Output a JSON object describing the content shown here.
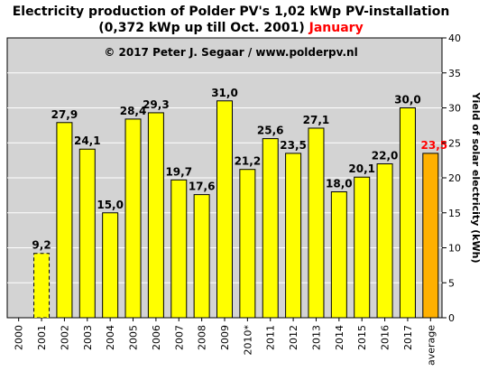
{
  "chart_data": {
    "type": "bar",
    "title_main": "Electricity production  of Polder  PV's 1,02 kWp PV-installation",
    "title_sub": "(0,372 kWp up till Oct. 2001)",
    "title_month": "January",
    "copyright": "© 2017 Peter J. Segaar / www.polderpv.nl",
    "ylabel": "Yield of solar electricity (kWh)",
    "xlabel": "",
    "ylim": [
      0,
      40
    ],
    "yticks": [
      "0",
      "5",
      "10",
      "15",
      "20",
      "25",
      "30",
      "35",
      "40"
    ],
    "grid": true,
    "categories": [
      "2000",
      "2001",
      "2002",
      "2003",
      "2004",
      "2005",
      "2006",
      "2007",
      "2008",
      "2009",
      "2010*",
      "2011",
      "2012",
      "2013",
      "2014",
      "2015",
      "2016",
      "2017",
      "average"
    ],
    "values": [
      null,
      9.2,
      27.9,
      24.1,
      15.0,
      28.4,
      29.3,
      19.7,
      17.6,
      31.0,
      21.2,
      25.6,
      23.5,
      27.1,
      18.0,
      20.1,
      22.0,
      30.0,
      23.5
    ],
    "value_labels": [
      "",
      "9,2",
      "27,9",
      "24,1",
      "15,0",
      "28,4",
      "29,3",
      "19,7",
      "17,6",
      "31,0",
      "21,2",
      "25,6",
      "23,5",
      "27,1",
      "18,0",
      "20,1",
      "22,0",
      "30,0",
      "23,5"
    ],
    "colors": {
      "bar": "#ffff00",
      "average_bar": "#ffb000",
      "average_label": "#ff0000",
      "plot_background": "#d3d3d3",
      "grid": "#ffffff",
      "month": "#ff0000"
    }
  }
}
